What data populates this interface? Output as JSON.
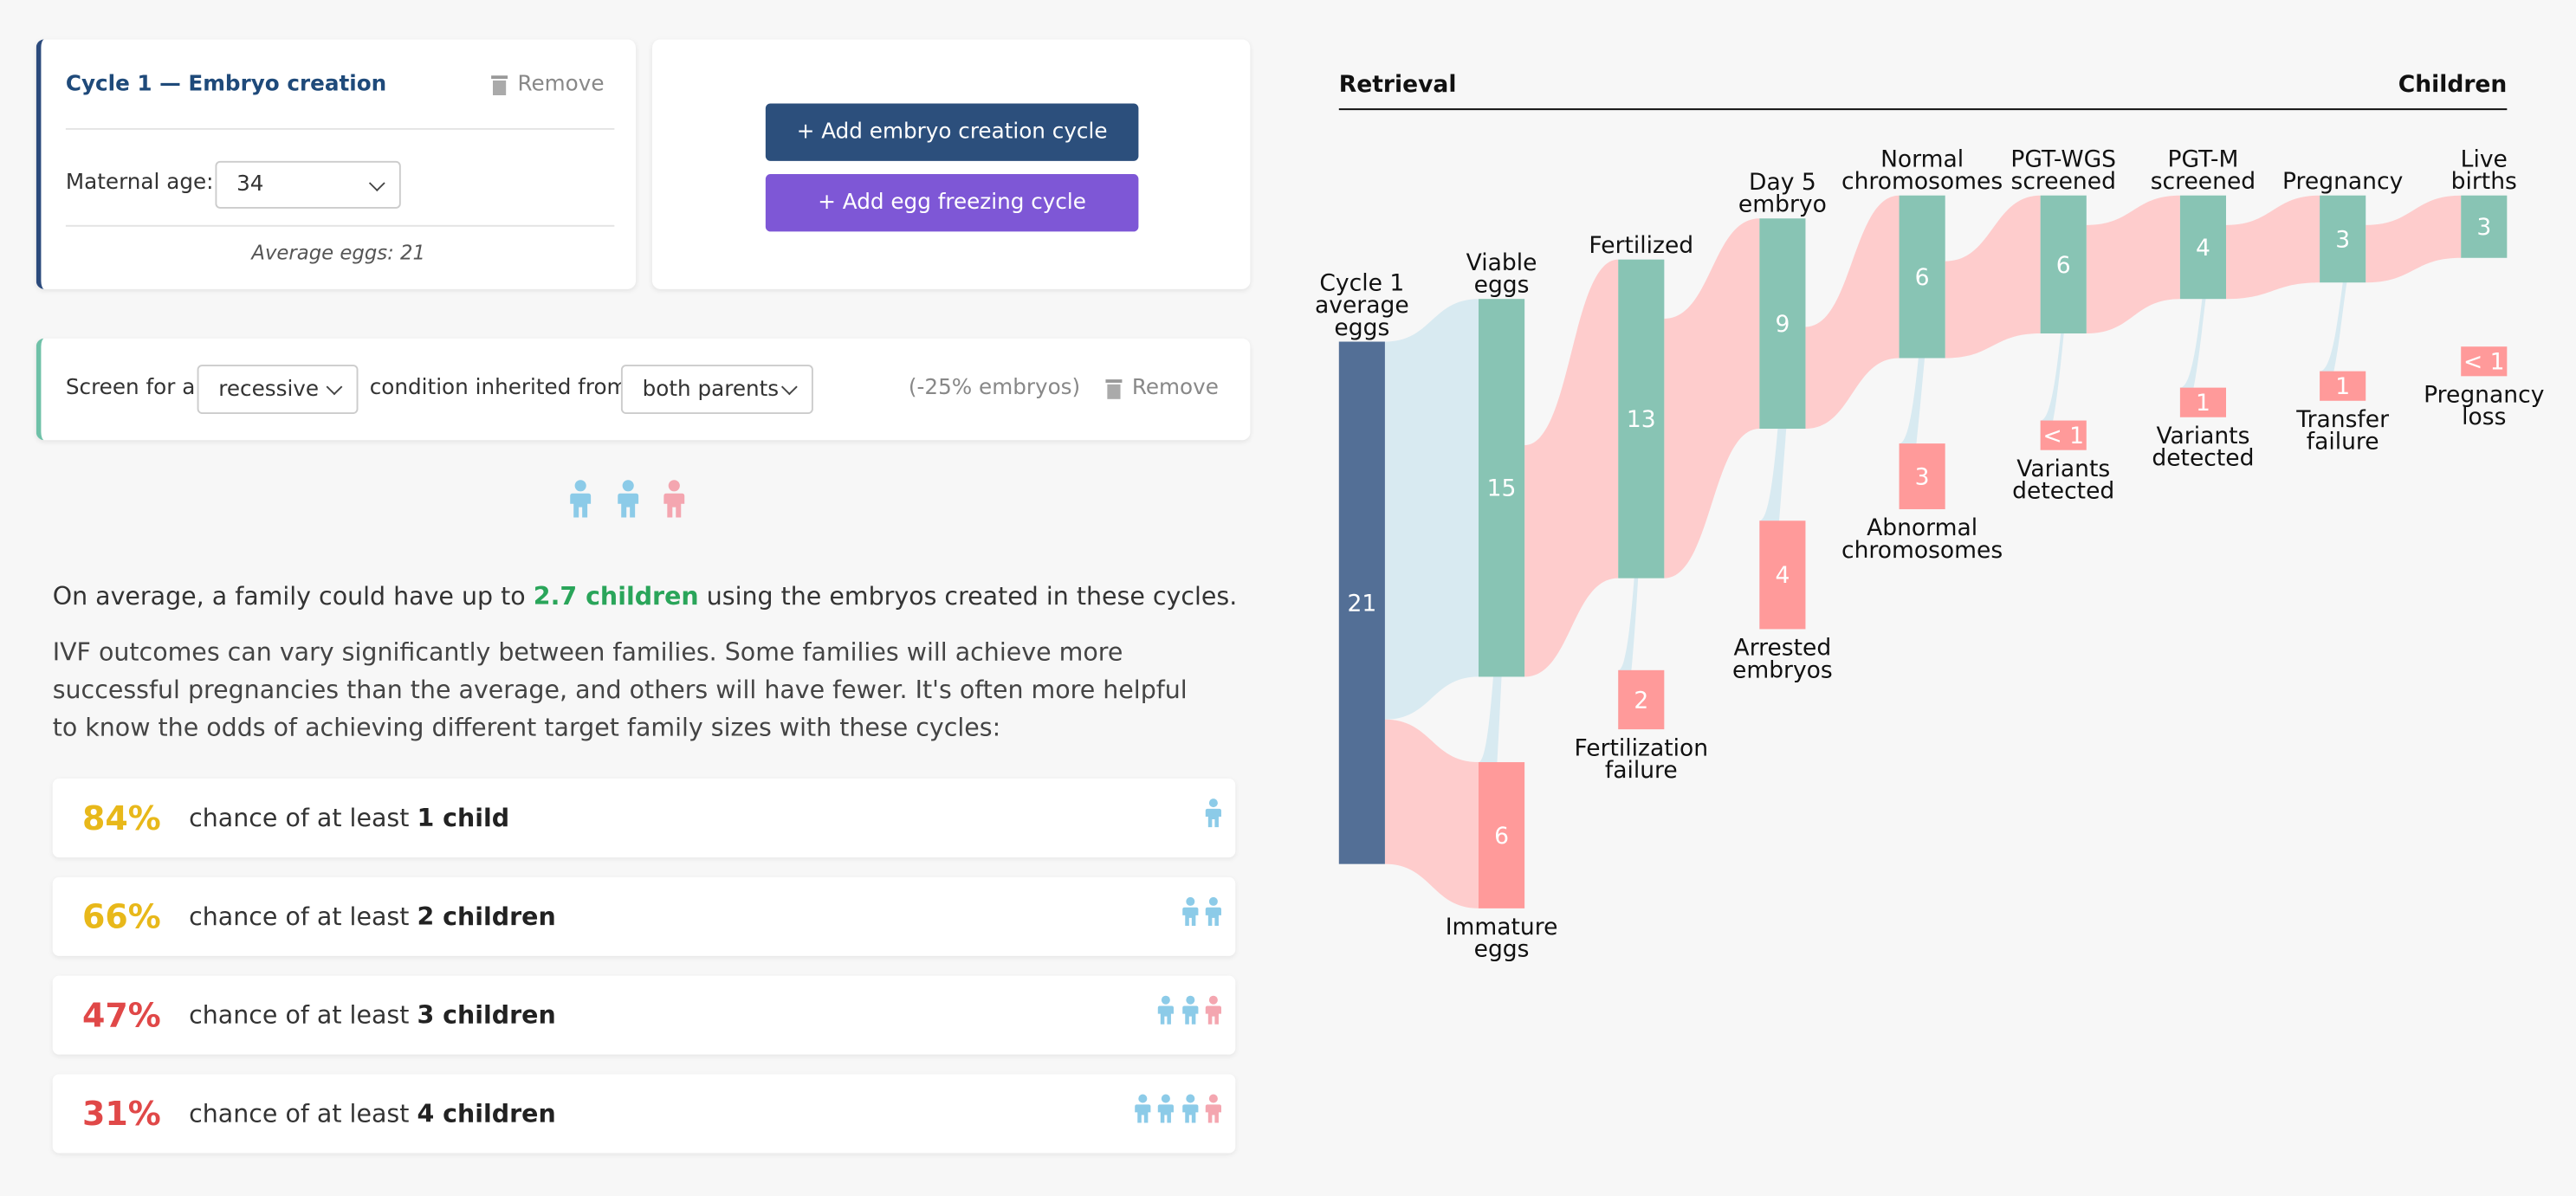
{
  "cycle_card": {
    "title": "Cycle 1 — Embryo creation",
    "remove": "Remove",
    "age_label": "Maternal age:",
    "age_value": "34",
    "average": "Average eggs: 21"
  },
  "buttons": {
    "add_embryo": "+ Add embryo creation cycle",
    "add_egg": "+ Add egg freezing cycle"
  },
  "screen_card": {
    "prefix": "Screen for a",
    "condition": "recessive",
    "middle": "condition inherited from",
    "parents": "both parents",
    "effect": "(-25% embryos)",
    "remove": "Remove"
  },
  "summary": {
    "before": "On average, a family could have up to",
    "highlight": "2.7 children",
    "after": "using the embryos created in these cycles."
  },
  "paragraph": "IVF outcomes can vary significantly between families. Some families will achieve more successful pregnancies than the average, and others will have fewer. It's often more helpful to know the odds of achieving different target family sizes with these cycles:",
  "odds": [
    {
      "percent": "84%",
      "text": "chance of at least",
      "target": "1 child"
    },
    {
      "percent": "66%",
      "text": "chance of at least",
      "target": "2 children"
    },
    {
      "percent": "47%",
      "text": "chance of at least",
      "target": "3 children"
    },
    {
      "percent": "31%",
      "text": "chance of at least",
      "target": "4 children"
    }
  ],
  "sankey": {
    "header_left": "Retrieval",
    "header_right": "Children",
    "nodes": [
      {
        "label": [
          "Cycle 1",
          "average",
          "eggs"
        ],
        "value": "21"
      },
      {
        "label": [
          "Viable",
          "eggs"
        ],
        "value": "15"
      },
      {
        "label": [
          "Immature",
          "eggs"
        ],
        "value": "6"
      },
      {
        "label": [
          "Fertilized"
        ],
        "value": "13"
      },
      {
        "label": [
          "Fertilization",
          "failure"
        ],
        "value": "2"
      },
      {
        "label": [
          "Day 5",
          "embryo"
        ],
        "value": "9"
      },
      {
        "label": [
          "Arrested",
          "embryos"
        ],
        "value": "4"
      },
      {
        "label": [
          "Normal",
          "chromosomes"
        ],
        "value": "6"
      },
      {
        "label": [
          "Abnormal",
          "chromosomes"
        ],
        "value": "3"
      },
      {
        "label": [
          "PGT-WGS",
          "screened"
        ],
        "value": "6"
      },
      {
        "label": [
          "Variants",
          "detected"
        ],
        "value": "< 1"
      },
      {
        "label": [
          "PGT-M",
          "screened"
        ],
        "value": "4"
      },
      {
        "label": [
          "Variants",
          "detected"
        ],
        "value": "1"
      },
      {
        "label": [
          "Pregnancy"
        ],
        "value": "3"
      },
      {
        "label": [
          "Transfer",
          "failure"
        ],
        "value": "1"
      },
      {
        "label": [
          "Live",
          "births"
        ],
        "value": "3"
      },
      {
        "label": [
          "Pregnancy",
          "loss"
        ],
        "value": "< 1"
      }
    ]
  }
}
